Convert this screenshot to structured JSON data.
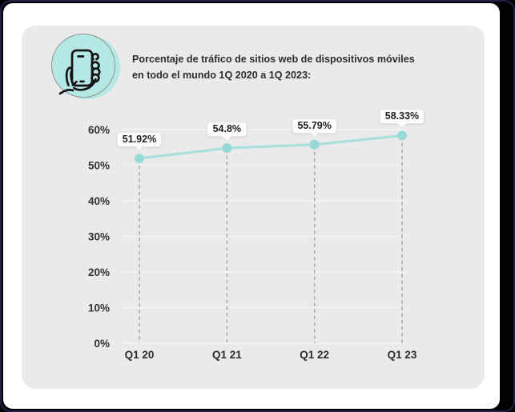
{
  "frame": {
    "background": "#000000",
    "border_color": "#20204a",
    "page_background": "#ffffff",
    "card_background": "#eaeaea"
  },
  "header": {
    "icon": "hand-holding-phone-icon",
    "icon_bg": "#b5e8e5",
    "title_line1": "Porcentaje de tráfico de sitios web de dispositivos móviles",
    "title_line2": "en todo el mundo 1Q 2020 a 1Q 2023:"
  },
  "chart_data": {
    "type": "line",
    "categories": [
      "Q1 20",
      "Q1 21",
      "Q1 22",
      "Q1 23"
    ],
    "values": [
      51.92,
      54.8,
      55.79,
      58.33
    ],
    "point_labels": [
      "51.92%",
      "54.8%",
      "55.79%",
      "58.33%"
    ],
    "yticks": [
      0,
      10,
      20,
      30,
      40,
      50,
      60
    ],
    "ytick_labels": [
      "0%",
      "10%",
      "20%",
      "30%",
      "40%",
      "50%",
      "60%"
    ],
    "ylim": [
      0,
      60
    ],
    "grid": "horizontal-solid and vertical-dashed at categories",
    "legend": "none",
    "line_color": "#a9e0dd",
    "point_color": "#96d9d6",
    "grid_color": "#f4f4f4",
    "dash_color": "#a8a8a8",
    "axis_text_color": "#333333"
  }
}
